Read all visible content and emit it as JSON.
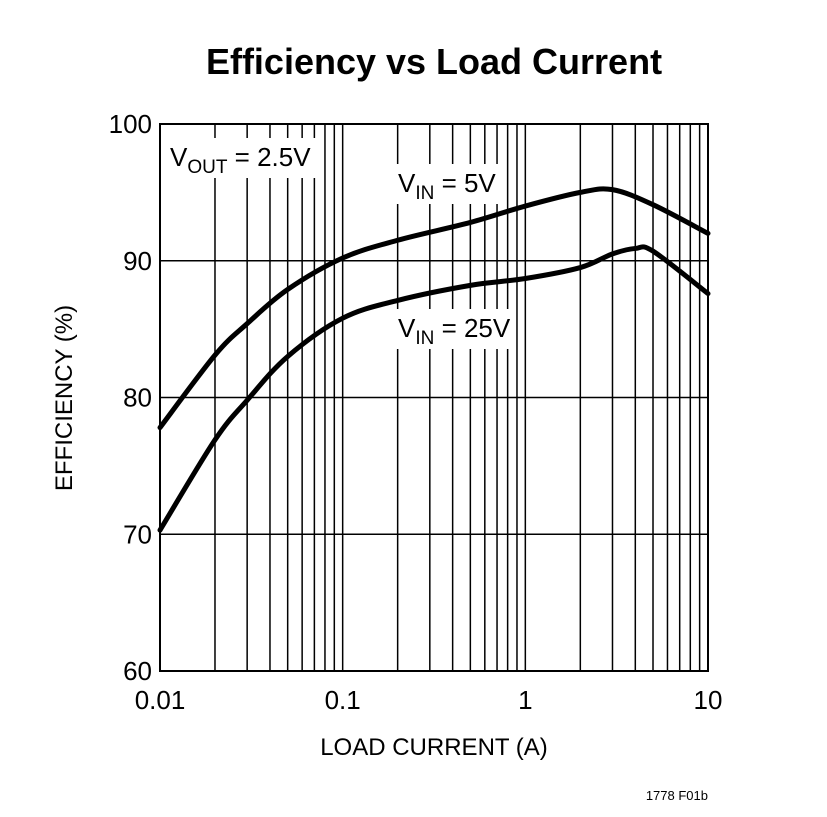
{
  "chart_data": {
    "type": "line",
    "title": "Efficiency vs Load Current",
    "xlabel": "LOAD CURRENT (A)",
    "ylabel": "EFFICIENCY (%)",
    "xscale": "log",
    "xlim": [
      0.01,
      10
    ],
    "ylim": [
      60,
      100
    ],
    "grid": true,
    "xticks": [
      {
        "v": 0.01,
        "label": "0.01"
      },
      {
        "v": 0.1,
        "label": "0.1"
      },
      {
        "v": 1,
        "label": "1"
      },
      {
        "v": 10,
        "label": "10"
      }
    ],
    "yticks": [
      {
        "v": 60,
        "label": "60"
      },
      {
        "v": 70,
        "label": "70"
      },
      {
        "v": 80,
        "label": "80"
      },
      {
        "v": 90,
        "label": "90"
      },
      {
        "v": 100,
        "label": "100"
      }
    ],
    "series": [
      {
        "name": "VIN = 5V",
        "label_main": "V",
        "label_sub": "IN",
        "label_rest": " = 5V",
        "x": [
          0.01,
          0.02,
          0.03,
          0.05,
          0.1,
          0.2,
          0.5,
          1,
          2,
          3,
          5,
          10
        ],
        "y": [
          77.8,
          83.1,
          85.4,
          87.9,
          90.2,
          91.5,
          92.8,
          94.0,
          95.0,
          95.2,
          94.1,
          92.0
        ]
      },
      {
        "name": "VIN = 25V",
        "label_main": "V",
        "label_sub": "IN",
        "label_rest": " = 25V",
        "x": [
          0.01,
          0.02,
          0.03,
          0.05,
          0.1,
          0.2,
          0.5,
          1,
          2,
          3,
          4,
          5,
          10
        ],
        "y": [
          70.3,
          76.9,
          79.8,
          83.0,
          85.8,
          87.1,
          88.2,
          88.7,
          89.5,
          90.5,
          90.9,
          90.7,
          87.6
        ]
      }
    ],
    "annotations": {
      "vout": {
        "main": "V",
        "sub": "OUT",
        "rest": " = 2.5V"
      }
    },
    "footnote": "1778 F01b"
  }
}
